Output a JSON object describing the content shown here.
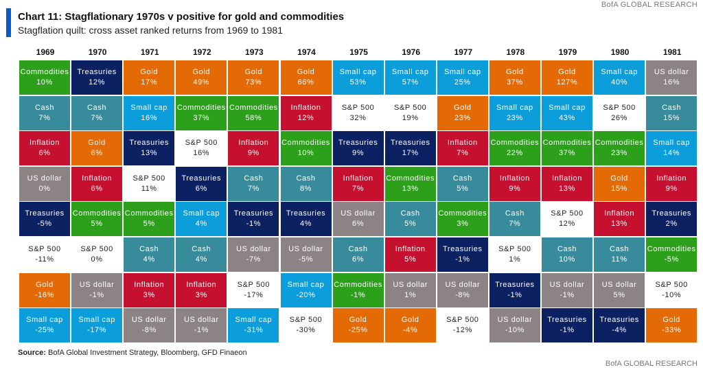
{
  "header": {
    "brand_top": "BofA GLOBAL RESEARCH",
    "title": "Chart 11: Stagflationary 1970s v positive for gold and commodities",
    "subtitle": "Stagflation quilt: cross asset ranked returns from 1969 to 1981",
    "accent_color": "#0a5bc4"
  },
  "footer": {
    "source_label": "Source:",
    "source_text": " BofA Global Investment Strategy, Bloomberg, GFD Finaeon",
    "brand_bottom": "BofA GLOBAL RESEARCH"
  },
  "chart_data": {
    "type": "table",
    "title": "Chart 11: Stagflationary 1970s v positive for gold and commodities",
    "subtitle": "Stagflation quilt: cross asset ranked returns from 1969 to 1981",
    "asset_colors": {
      "Commodities": "#2c9f1b",
      "Treasuries": "#0c2161",
      "Gold": "#e46a06",
      "Cash": "#388b9b",
      "Inflation": "#c5112f",
      "Small cap": "#0b9edb",
      "US dollar": "#8c8484",
      "S&P 500": "#ffffff"
    },
    "years": [
      {
        "year": "1969",
        "cells": [
          [
            "Commodities",
            "10%"
          ],
          [
            "Cash",
            "7%"
          ],
          [
            "Inflation",
            "6%"
          ],
          [
            "US dollar",
            "0%"
          ],
          [
            "Treasuries",
            "-5%"
          ],
          [
            "S&P 500",
            "-11%"
          ],
          [
            "Gold",
            "-16%"
          ],
          [
            "Small cap",
            "-25%"
          ]
        ]
      },
      {
        "year": "1970",
        "cells": [
          [
            "Treasuries",
            "12%"
          ],
          [
            "Cash",
            "7%"
          ],
          [
            "Gold",
            "6%"
          ],
          [
            "Inflation",
            "6%"
          ],
          [
            "Commodities",
            "5%"
          ],
          [
            "S&P 500",
            "0%"
          ],
          [
            "US dollar",
            "-1%"
          ],
          [
            "Small cap",
            "-17%"
          ]
        ]
      },
      {
        "year": "1971",
        "cells": [
          [
            "Gold",
            "17%"
          ],
          [
            "Small cap",
            "16%"
          ],
          [
            "Treasuries",
            "13%"
          ],
          [
            "S&P 500",
            "11%"
          ],
          [
            "Commodities",
            "5%"
          ],
          [
            "Cash",
            "4%"
          ],
          [
            "Inflation",
            "3%"
          ],
          [
            "US dollar",
            "-8%"
          ]
        ]
      },
      {
        "year": "1972",
        "cells": [
          [
            "Gold",
            "49%"
          ],
          [
            "Commodities",
            "37%"
          ],
          [
            "S&P 500",
            "16%"
          ],
          [
            "Treasuries",
            "6%"
          ],
          [
            "Small cap",
            "4%"
          ],
          [
            "Cash",
            "4%"
          ],
          [
            "Inflation",
            "3%"
          ],
          [
            "US dollar",
            "-1%"
          ]
        ]
      },
      {
        "year": "1973",
        "cells": [
          [
            "Gold",
            "73%"
          ],
          [
            "Commodities",
            "58%"
          ],
          [
            "Inflation",
            "9%"
          ],
          [
            "Cash",
            "7%"
          ],
          [
            "Treasuries",
            "-1%"
          ],
          [
            "US dollar",
            "-7%"
          ],
          [
            "S&P 500",
            "-17%"
          ],
          [
            "Small cap",
            "-31%"
          ]
        ]
      },
      {
        "year": "1974",
        "cells": [
          [
            "Gold",
            "66%"
          ],
          [
            "Inflation",
            "12%"
          ],
          [
            "Commodities",
            "10%"
          ],
          [
            "Cash",
            "8%"
          ],
          [
            "Treasuries",
            "4%"
          ],
          [
            "US dollar",
            "-5%"
          ],
          [
            "Small cap",
            "-20%"
          ],
          [
            "S&P 500",
            "-30%"
          ]
        ]
      },
      {
        "year": "1975",
        "cells": [
          [
            "Small cap",
            "53%"
          ],
          [
            "S&P 500",
            "32%"
          ],
          [
            "Treasuries",
            "9%"
          ],
          [
            "Inflation",
            "7%"
          ],
          [
            "US dollar",
            "6%"
          ],
          [
            "Cash",
            "6%"
          ],
          [
            "Commodities",
            "-1%"
          ],
          [
            "Gold",
            "-25%"
          ]
        ]
      },
      {
        "year": "1976",
        "cells": [
          [
            "Small cap",
            "57%"
          ],
          [
            "S&P 500",
            "19%"
          ],
          [
            "Treasuries",
            "17%"
          ],
          [
            "Commodities",
            "13%"
          ],
          [
            "Cash",
            "5%"
          ],
          [
            "Inflation",
            "5%"
          ],
          [
            "US dollar",
            "1%"
          ],
          [
            "Gold",
            "-4%"
          ]
        ]
      },
      {
        "year": "1977",
        "cells": [
          [
            "Small cap",
            "25%"
          ],
          [
            "Gold",
            "23%"
          ],
          [
            "Inflation",
            "7%"
          ],
          [
            "Cash",
            "5%"
          ],
          [
            "Commodities",
            "3%"
          ],
          [
            "Treasuries",
            "-1%"
          ],
          [
            "US dollar",
            "-8%"
          ],
          [
            "S&P 500",
            "-12%"
          ]
        ]
      },
      {
        "year": "1978",
        "cells": [
          [
            "Gold",
            "37%"
          ],
          [
            "Small cap",
            "23%"
          ],
          [
            "Commodities",
            "22%"
          ],
          [
            "Inflation",
            "9%"
          ],
          [
            "Cash",
            "7%"
          ],
          [
            "S&P 500",
            "1%"
          ],
          [
            "Treasuries",
            "-1%"
          ],
          [
            "US dollar",
            "-10%"
          ]
        ]
      },
      {
        "year": "1979",
        "cells": [
          [
            "Gold",
            "127%"
          ],
          [
            "Small cap",
            "43%"
          ],
          [
            "Commodities",
            "37%"
          ],
          [
            "Inflation",
            "13%"
          ],
          [
            "S&P 500",
            "12%"
          ],
          [
            "Cash",
            "10%"
          ],
          [
            "US dollar",
            "-1%"
          ],
          [
            "Treasuries",
            "-1%"
          ]
        ]
      },
      {
        "year": "1980",
        "cells": [
          [
            "Small cap",
            "40%"
          ],
          [
            "S&P 500",
            "26%"
          ],
          [
            "Commodities",
            "23%"
          ],
          [
            "Gold",
            "15%"
          ],
          [
            "Inflation",
            "13%"
          ],
          [
            "Cash",
            "11%"
          ],
          [
            "US dollar",
            "5%"
          ],
          [
            "Treasuries",
            "-4%"
          ]
        ]
      },
      {
        "year": "1981",
        "cells": [
          [
            "US dollar",
            "16%"
          ],
          [
            "Cash",
            "15%"
          ],
          [
            "Small cap",
            "14%"
          ],
          [
            "Inflation",
            "9%"
          ],
          [
            "Treasuries",
            "2%"
          ],
          [
            "Commodities",
            "-5%"
          ],
          [
            "S&P 500",
            "-10%"
          ],
          [
            "Gold",
            "-33%"
          ]
        ]
      }
    ]
  }
}
